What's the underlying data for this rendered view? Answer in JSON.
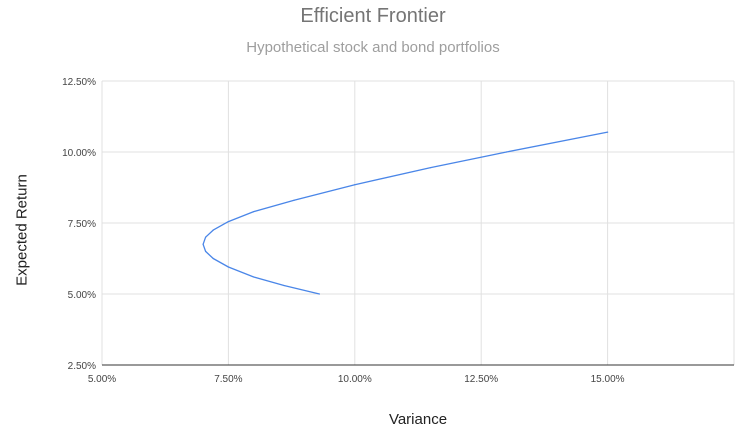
{
  "chart_data": {
    "type": "line",
    "title": "Efficient Frontier",
    "subtitle": "Hypothetical stock and bond portfolios",
    "xlabel": "Variance",
    "ylabel": "Expected Return",
    "xlim": [
      5.0,
      17.5
    ],
    "ylim": [
      2.5,
      12.5
    ],
    "x_ticks": [
      "5.00%",
      "7.50%",
      "10.00%",
      "12.50%",
      "15.00%"
    ],
    "y_ticks": [
      "12.50%",
      "10.00%",
      "7.50%",
      "5.00%",
      "2.50%"
    ],
    "grid": true,
    "legend": "none",
    "series": [
      {
        "color": "#4a86e8",
        "points": [
          [
            9.3,
            5.0
          ],
          [
            8.6,
            5.3
          ],
          [
            8.0,
            5.6
          ],
          [
            7.5,
            5.95
          ],
          [
            7.2,
            6.25
          ],
          [
            7.05,
            6.5
          ],
          [
            7.0,
            6.75
          ],
          [
            7.05,
            7.0
          ],
          [
            7.2,
            7.25
          ],
          [
            7.5,
            7.55
          ],
          [
            8.0,
            7.9
          ],
          [
            8.8,
            8.3
          ],
          [
            10.0,
            8.85
          ],
          [
            11.5,
            9.45
          ],
          [
            13.0,
            10.0
          ],
          [
            15.0,
            10.7
          ]
        ]
      }
    ]
  }
}
